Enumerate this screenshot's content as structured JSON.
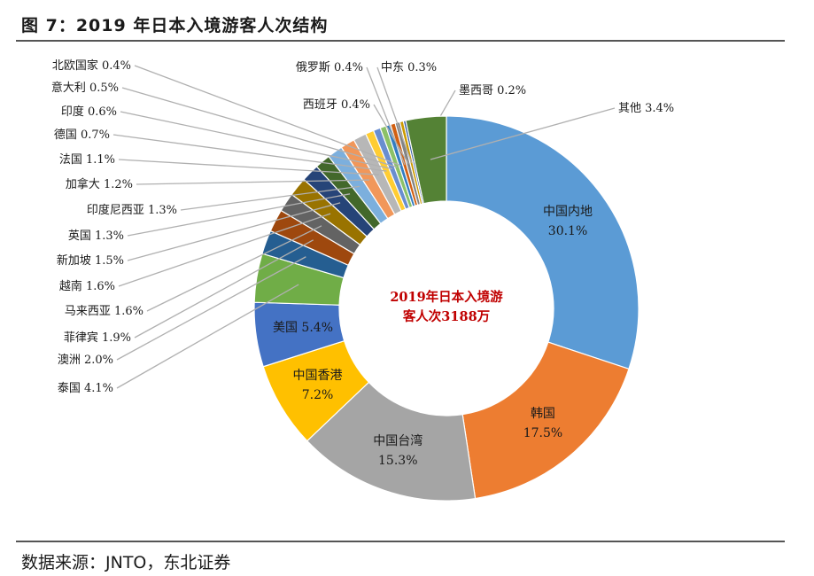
{
  "header": {
    "title": "图 7：2019 年日本入境游客人次结构"
  },
  "footer": {
    "source": "数据来源：JNTO，东北证券"
  },
  "chart_data": {
    "type": "pie",
    "donut": true,
    "title": "图 7：2019 年日本入境游客人次结构",
    "center_text": [
      "2019年日本入境游",
      "客人次3188万"
    ],
    "unit": "%",
    "slices": [
      {
        "name": "中国内地",
        "value": 30.1,
        "color": "#5b9bd5",
        "label": "中国内地",
        "pct": "30.1%"
      },
      {
        "name": "韩国",
        "value": 17.5,
        "color": "#ed7d31",
        "label": "韩国",
        "pct": "17.5%"
      },
      {
        "name": "中国台湾",
        "value": 15.3,
        "color": "#a5a5a5",
        "label": "中国台湾",
        "pct": "15.3%"
      },
      {
        "name": "中国香港",
        "value": 7.2,
        "color": "#ffc000",
        "label": "中国香港",
        "pct": "7.2%"
      },
      {
        "name": "美国",
        "value": 5.4,
        "color": "#4472c4",
        "label": "美国 5.4%"
      },
      {
        "name": "泰国",
        "value": 4.1,
        "color": "#70ad47",
        "label": "泰国 4.1%"
      },
      {
        "name": "澳洲",
        "value": 2.0,
        "color": "#255e91",
        "label": "澳洲 2.0%"
      },
      {
        "name": "菲律宾",
        "value": 1.9,
        "color": "#9e480e",
        "label": "菲律宾 1.9%"
      },
      {
        "name": "马来西亚",
        "value": 1.6,
        "color": "#636363",
        "label": "马来西亚 1.6%"
      },
      {
        "name": "越南",
        "value": 1.6,
        "color": "#997300",
        "label": "越南 1.6%"
      },
      {
        "name": "新加坡",
        "value": 1.5,
        "color": "#264478",
        "label": "新加坡 1.5%"
      },
      {
        "name": "英国",
        "value": 1.3,
        "color": "#43682b",
        "label": "英国 1.3%"
      },
      {
        "name": "印度尼西亚",
        "value": 1.3,
        "color": "#7cafdd",
        "label": "印度尼西亚 1.3%"
      },
      {
        "name": "加拿大",
        "value": 1.2,
        "color": "#f1975a",
        "label": "加拿大 1.2%"
      },
      {
        "name": "法国",
        "value": 1.1,
        "color": "#b7b7b7",
        "label": "法国 1.1%"
      },
      {
        "name": "德国",
        "value": 0.7,
        "color": "#ffcd33",
        "label": "德国 0.7%"
      },
      {
        "name": "印度",
        "value": 0.6,
        "color": "#698ed0",
        "label": "印度 0.6%"
      },
      {
        "name": "意大利",
        "value": 0.5,
        "color": "#8cc168",
        "label": "意大利 0.5%"
      },
      {
        "name": "北欧国家",
        "value": 0.4,
        "color": "#327dc2",
        "label": "北欧国家 0.4%"
      },
      {
        "name": "俄罗斯",
        "value": 0.4,
        "color": "#d26012",
        "label": "俄罗斯 0.4%"
      },
      {
        "name": "西班牙",
        "value": 0.4,
        "color": "#848484",
        "label": "西班牙 0.4%"
      },
      {
        "name": "中东",
        "value": 0.3,
        "color": "#cc9a00",
        "label": "中东 0.3%"
      },
      {
        "name": "墨西哥",
        "value": 0.2,
        "color": "#335aa1",
        "label": "墨西哥 0.2%"
      },
      {
        "name": "其他",
        "value": 3.4,
        "color": "#548235",
        "label": "其他 3.4%"
      }
    ]
  }
}
